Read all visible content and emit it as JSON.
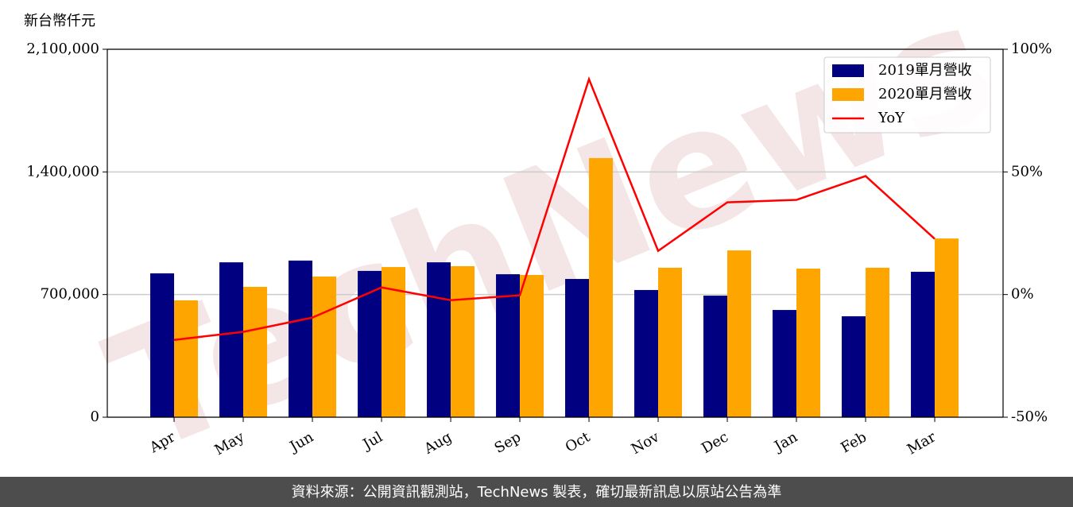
{
  "chart_data": {
    "type": "bar",
    "ylabel": "新台幣仟元",
    "watermark": "TechNews",
    "footer": "資料來源：公開資訊觀測站，TechNews 製表，確切最新訊息以原站公告為準",
    "categories": [
      "Apr",
      "May",
      "Jun",
      "Jul",
      "Aug",
      "Sep",
      "Oct",
      "Nov",
      "Dec",
      "Jan",
      "Feb",
      "Mar"
    ],
    "series": [
      {
        "name": "2019單月營收",
        "type": "bar",
        "color": "#000080",
        "axis": "y",
        "values": [
          821000,
          884000,
          894000,
          835000,
          884000,
          816000,
          789000,
          726000,
          694000,
          612000,
          576000,
          830000
        ]
      },
      {
        "name": "2020單月營收",
        "type": "bar",
        "color": "#ffa500",
        "axis": "y",
        "values": [
          667000,
          744000,
          803000,
          857000,
          862000,
          812000,
          1479000,
          853000,
          952000,
          848000,
          853000,
          1020000
        ]
      },
      {
        "name": "YoY",
        "type": "line",
        "color": "#ff0000",
        "axis": "y2",
        "values": [
          -18.5,
          -15.2,
          -9.4,
          2.9,
          -2.3,
          -0.3,
          87.8,
          17.8,
          37.6,
          38.6,
          48.3,
          22.7
        ]
      }
    ],
    "ylim": [
      0,
      2100000
    ],
    "yticks": [
      0,
      {
        "value": 700000,
        "label": "700,000"
      },
      {
        "value": 1400000,
        "label": "1,400,000"
      },
      {
        "value": 2100000,
        "label": "2,100,000"
      }
    ],
    "y2lim": [
      -50,
      100
    ],
    "y2ticks": [
      {
        "value": -50,
        "label": "-50%"
      },
      {
        "value": 0,
        "label": "0%"
      },
      {
        "value": 50,
        "label": "50%"
      },
      {
        "value": 100,
        "label": "100%"
      }
    ],
    "grid": true,
    "legend": "upper right"
  }
}
